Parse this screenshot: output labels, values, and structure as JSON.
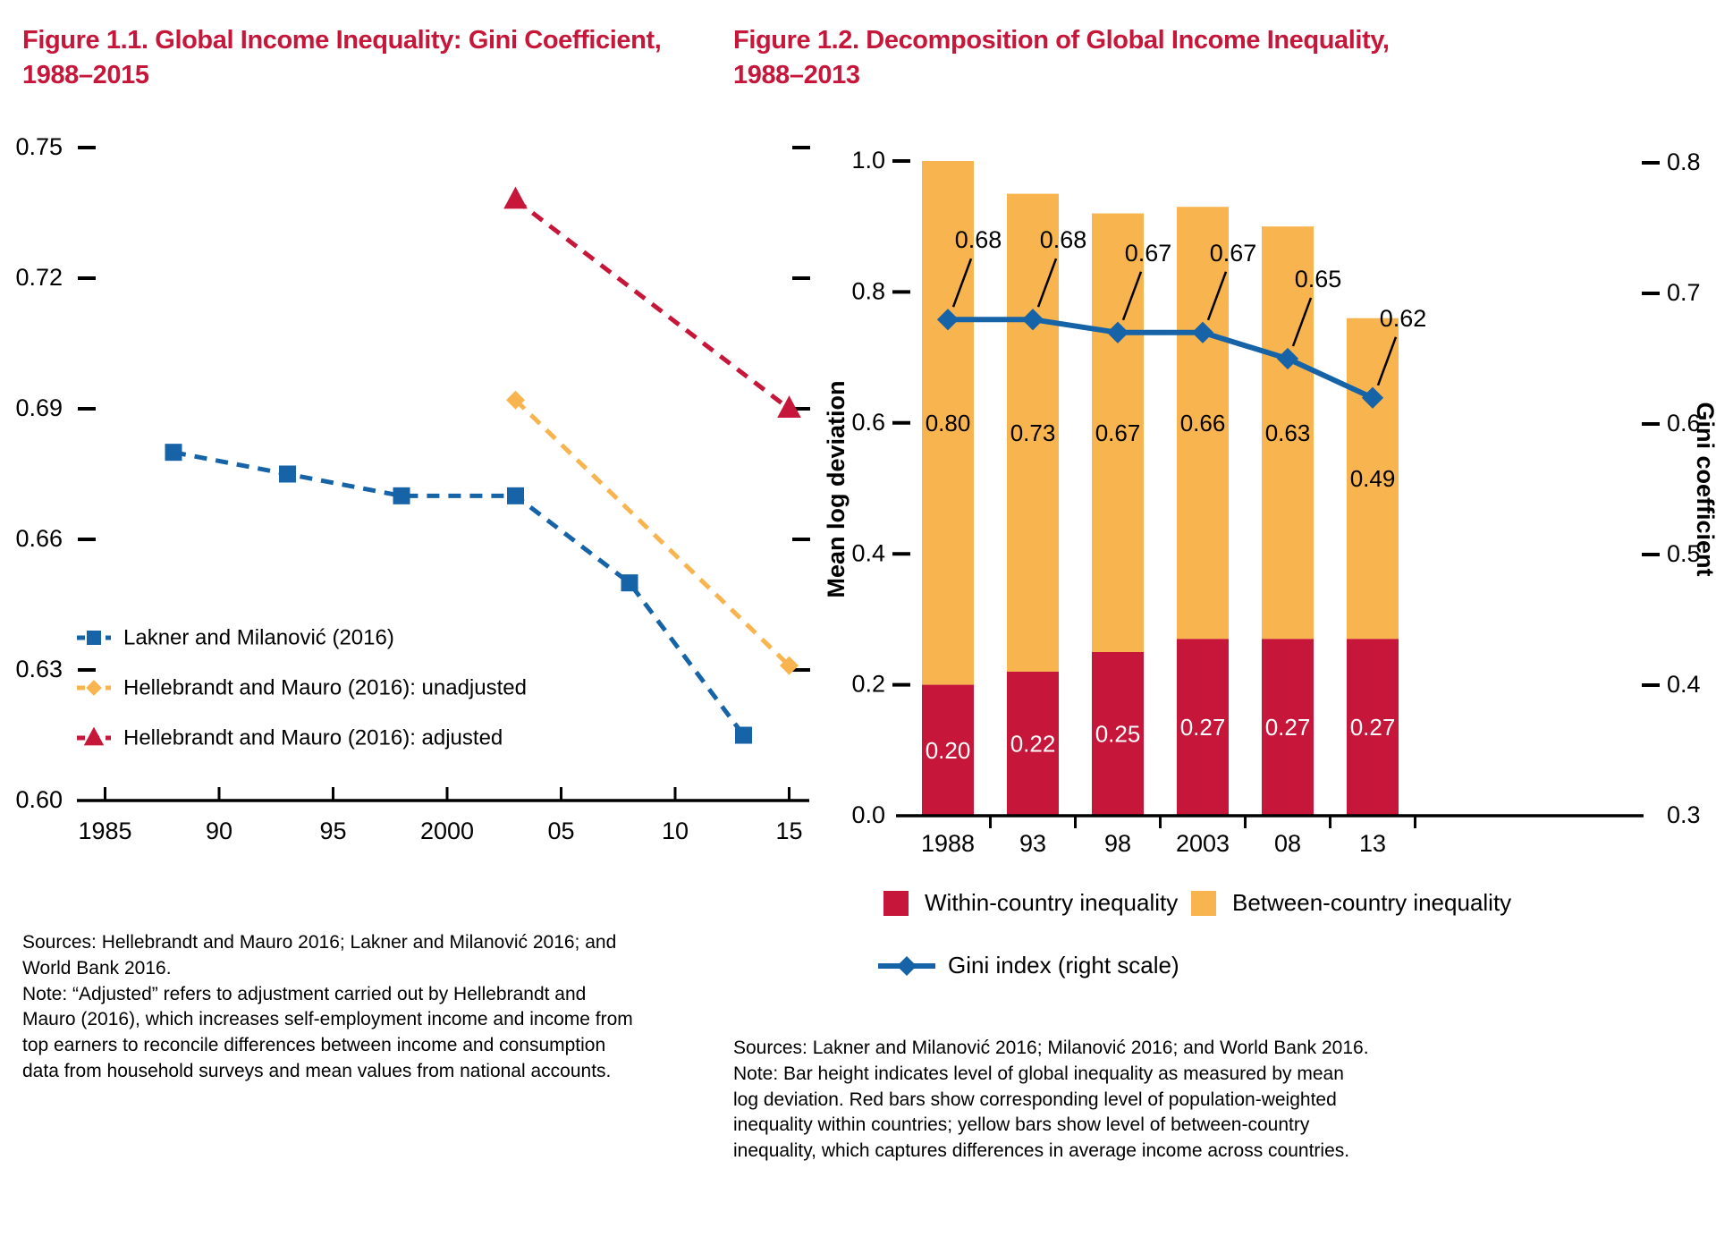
{
  "figure1": {
    "title_line1": "Figure 1.1. Global Income Inequality: Gini Coefficient,",
    "title_line2": "1988–2015",
    "accent_color": "#C6173B",
    "chart_data": {
      "type": "line",
      "title": "Global Income Inequality: Gini Coefficient, 1988–2015",
      "xlabel": "",
      "ylabel": "",
      "xlim": [
        1984,
        2016
      ],
      "ylim": [
        0.6,
        0.75
      ],
      "grid": false,
      "x_ticks": {
        "years": [
          1985,
          1990,
          1995,
          2000,
          2005,
          2010,
          2015
        ],
        "labels": [
          "1985",
          "90",
          "95",
          "2000",
          "05",
          "10",
          "15"
        ]
      },
      "y_ticks": {
        "values": [
          0.75,
          0.72,
          0.69,
          0.66,
          0.63,
          0.6
        ],
        "labels": [
          "0.75",
          "0.72",
          "0.69",
          "0.66",
          "0.63",
          "0.60"
        ]
      },
      "legend_position": "inside lower-left",
      "series": [
        {
          "name": "Lakner and Milanović (2016)",
          "color": "#1663A8",
          "marker": "square",
          "x": [
            1988,
            1993,
            1998,
            2003,
            2008,
            2013
          ],
          "y": [
            0.68,
            0.675,
            0.67,
            0.67,
            0.65,
            0.615
          ]
        },
        {
          "name": "Hellebrandt and Mauro (2016): unadjusted",
          "color": "#F8B44F",
          "marker": "diamond",
          "x": [
            2003,
            2015
          ],
          "y": [
            0.692,
            0.631
          ]
        },
        {
          "name": "Hellebrandt and Mauro (2016): adjusted",
          "color": "#C6173B",
          "marker": "triangle",
          "x": [
            2003,
            2015
          ],
          "y": [
            0.738,
            0.69
          ]
        }
      ]
    },
    "notes": [
      "Sources: Hellebrandt and Mauro 2016; Lakner and Milanović 2016; and World Bank 2016.",
      "Note: “Adjusted” refers to adjustment carried out by Hellebrandt and Mauro (2016), which increases self-employment income and income from top earners to reconcile differences between income and consumption data from household surveys and mean values from national accounts."
    ]
  },
  "figure2": {
    "title_line1": "Figure 1.2. Decomposition of Global Income Inequality,",
    "title_line2": "1988–2013",
    "accent_color": "#C6173B",
    "chart_data": {
      "type": "stacked-bar+line",
      "title": "Decomposition of Global Income Inequality, 1988–2013",
      "categories": [
        "1988",
        "93",
        "98",
        "2003",
        "08",
        "13"
      ],
      "bar_series": [
        {
          "name": "Within-country inequality",
          "color": "#C6173B",
          "label_color": "#ffffff",
          "values": [
            0.2,
            0.22,
            0.25,
            0.27,
            0.27,
            0.27
          ],
          "labels": [
            "0.20",
            "0.22",
            "0.25",
            "0.27",
            "0.27",
            "0.27"
          ]
        },
        {
          "name": "Between-country inequality",
          "color": "#F8B44F",
          "label_color": "#000000",
          "values": [
            0.8,
            0.73,
            0.67,
            0.66,
            0.63,
            0.49
          ],
          "labels": [
            "0.80",
            "0.73",
            "0.67",
            "0.66",
            "0.63",
            "0.49"
          ]
        }
      ],
      "line_series": {
        "name": "Gini index (right scale)",
        "color": "#1663A8",
        "marker": "diamond",
        "values": [
          0.68,
          0.68,
          0.67,
          0.67,
          0.65,
          0.62
        ],
        "labels": [
          "0.68",
          "0.68",
          "0.67",
          "0.67",
          "0.65",
          "0.62"
        ]
      },
      "left_axis": {
        "label": "Mean log deviation",
        "range": [
          0.0,
          1.0
        ],
        "ticks": [
          1.0,
          0.8,
          0.6,
          0.4,
          0.2,
          0.0
        ],
        "tick_labels": [
          "1.0",
          "0.8",
          "0.6",
          "0.4",
          "0.2",
          "0.0"
        ]
      },
      "right_axis": {
        "label": "Gini coefficient",
        "range": [
          0.3,
          0.8
        ],
        "ticks": [
          0.8,
          0.7,
          0.6,
          0.5,
          0.4,
          0.3
        ],
        "tick_labels": [
          "0.8",
          "0.7",
          "0.6",
          "0.5",
          "0.4",
          "0.3"
        ]
      },
      "grid": false,
      "legend_position": "below"
    },
    "notes": [
      "Sources: Lakner and Milanović 2016; Milanović 2016; and World Bank 2016.",
      "Note: Bar height indicates level of global inequality as measured by mean log deviation. Red bars show corresponding level of population-weighted inequality within countries; yellow bars show level of between-country inequality, which captures differences in average income across countries."
    ]
  }
}
